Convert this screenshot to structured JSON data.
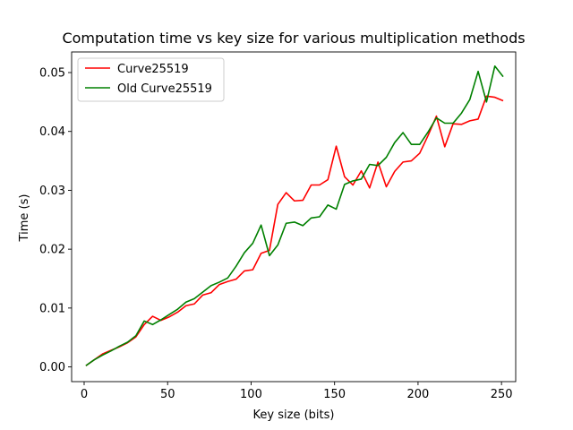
{
  "chart_data": {
    "type": "line",
    "title": "Computation time vs key size for various multiplication methods",
    "xlabel": "Key size (bits)",
    "ylabel": "Time (s)",
    "xlim": [
      -7.5,
      258.5
    ],
    "ylim": [
      -0.0025,
      0.0535
    ],
    "xticks": [
      0,
      50,
      100,
      150,
      200,
      250
    ],
    "xtick_labels": [
      "0",
      "50",
      "100",
      "150",
      "200",
      "250"
    ],
    "yticks": [
      0.0,
      0.01,
      0.02,
      0.03,
      0.04,
      0.05
    ],
    "ytick_labels": [
      "0.00",
      "0.01",
      "0.02",
      "0.03",
      "0.04",
      "0.05"
    ],
    "grid": false,
    "legend_position": "top-left",
    "x": [
      1,
      6,
      11,
      16,
      21,
      26,
      31,
      36,
      41,
      46,
      51,
      56,
      61,
      66,
      71,
      76,
      81,
      86,
      91,
      96,
      101,
      106,
      111,
      116,
      121,
      126,
      131,
      136,
      141,
      146,
      151,
      156,
      161,
      166,
      171,
      176,
      181,
      186,
      191,
      196,
      201,
      206,
      211,
      216,
      221,
      226,
      231,
      236,
      241,
      246,
      251
    ],
    "series": [
      {
        "name": "Curve25519",
        "color": "#ff0000",
        "values": [
          0.0002,
          0.0012,
          0.0022,
          0.0028,
          0.0034,
          0.0041,
          0.0051,
          0.0072,
          0.0086,
          0.0079,
          0.0085,
          0.0093,
          0.0104,
          0.0107,
          0.0122,
          0.0126,
          0.014,
          0.0145,
          0.0149,
          0.0163,
          0.0165,
          0.0193,
          0.0198,
          0.0276,
          0.0296,
          0.0282,
          0.0283,
          0.0309,
          0.0309,
          0.0318,
          0.0375,
          0.0323,
          0.0309,
          0.0333,
          0.0304,
          0.0348,
          0.0306,
          0.0332,
          0.0348,
          0.035,
          0.0363,
          0.0393,
          0.0426,
          0.0374,
          0.0413,
          0.0412,
          0.0418,
          0.0421,
          0.046,
          0.0458,
          0.0452
        ]
      },
      {
        "name": "Old Curve25519",
        "color": "#008000",
        "values": [
          0.0002,
          0.0012,
          0.002,
          0.0027,
          0.0035,
          0.0042,
          0.0053,
          0.0078,
          0.0072,
          0.008,
          0.0089,
          0.0098,
          0.011,
          0.0116,
          0.0127,
          0.0138,
          0.0144,
          0.0151,
          0.0171,
          0.0194,
          0.021,
          0.0241,
          0.0189,
          0.0207,
          0.0244,
          0.0246,
          0.024,
          0.0253,
          0.0255,
          0.0275,
          0.0268,
          0.031,
          0.0316,
          0.0319,
          0.0344,
          0.0342,
          0.0356,
          0.0381,
          0.0398,
          0.0378,
          0.0378,
          0.0399,
          0.0423,
          0.0414,
          0.0414,
          0.0431,
          0.0454,
          0.0502,
          0.045,
          0.0511,
          0.0493
        ]
      }
    ]
  }
}
